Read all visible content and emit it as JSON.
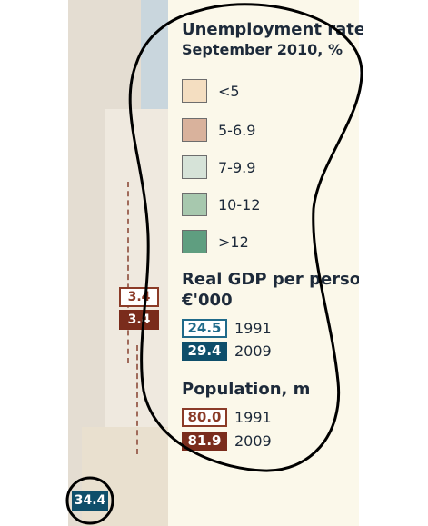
{
  "legend": {
    "unemployment_title_line1": "Unemployment rate",
    "unemployment_title_line2": "September 2010, %",
    "unemployment_bins": [
      {
        "label": "<5",
        "color": "#f4dec1"
      },
      {
        "label": "5-6.9",
        "color": "#d9b29c"
      },
      {
        "label": "7-9.9",
        "color": "#d6e3d8"
      },
      {
        "label": "10-12",
        "color": "#a7c8ae"
      },
      {
        "label": ">12",
        "color": "#5f9e80"
      }
    ],
    "gdp_title_line1": "Real GDP per person",
    "gdp_title_line2": "€'000",
    "gdp_items": [
      {
        "value": "24.5",
        "year": "1991"
      },
      {
        "value": "29.4",
        "year": "2009"
      }
    ],
    "population_title": "Population, m",
    "population_items": [
      {
        "value": "80.0",
        "year": "1991"
      },
      {
        "value": "81.9",
        "year": "2009"
      }
    ]
  },
  "map": {
    "label_top": "3.4",
    "label_bottom": "3.4",
    "label_corner": "34.4"
  }
}
